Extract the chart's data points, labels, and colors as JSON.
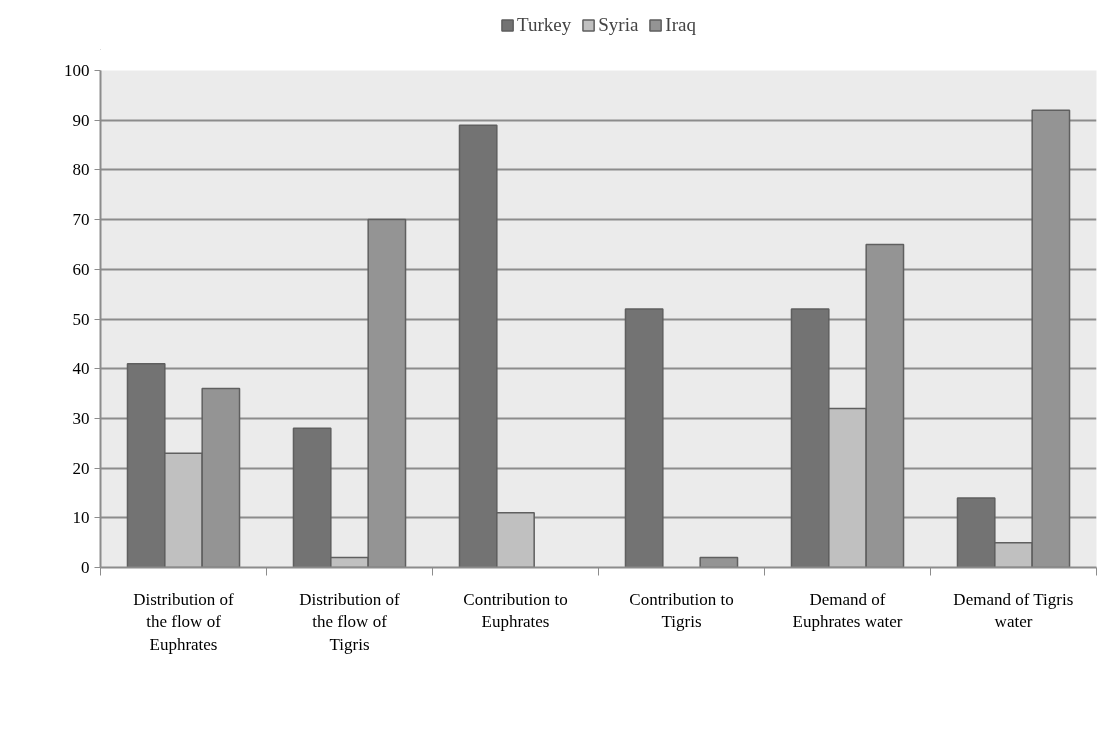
{
  "chart_data": {
    "type": "bar",
    "categories": [
      "Distribution of the flow of Euphrates",
      "Distribution of the flow of Tigris",
      "Contribution to Euphrates",
      "Contribution to Tigris",
      "Demand of Euphrates water",
      "Demand of Tigris water"
    ],
    "series": [
      {
        "name": "Turkey",
        "color": "#737373",
        "values": [
          41,
          28,
          89,
          52,
          52,
          14
        ]
      },
      {
        "name": "Syria",
        "color": "#c0c0c0",
        "values": [
          23,
          2,
          11,
          null,
          32,
          5
        ]
      },
      {
        "name": "Iraq",
        "color": "#949494",
        "values": [
          36,
          70,
          null,
          2,
          65,
          92
        ]
      }
    ],
    "ylim": [
      0,
      100
    ],
    "yticks": [
      0,
      10,
      20,
      30,
      40,
      50,
      60,
      70,
      80,
      90,
      100
    ],
    "grid": "y",
    "legend": "top"
  }
}
